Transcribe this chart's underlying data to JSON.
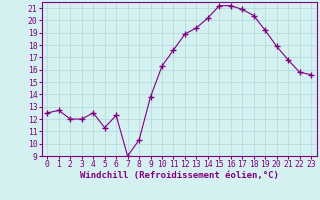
{
  "x": [
    0,
    1,
    2,
    3,
    4,
    5,
    6,
    7,
    8,
    9,
    10,
    11,
    12,
    13,
    14,
    15,
    16,
    17,
    18,
    19,
    20,
    21,
    22,
    23
  ],
  "y": [
    12.5,
    12.7,
    12.0,
    12.0,
    12.5,
    11.3,
    12.3,
    9.0,
    10.3,
    13.8,
    16.3,
    17.6,
    18.9,
    19.4,
    20.2,
    21.2,
    21.2,
    20.9,
    20.4,
    19.2,
    17.9,
    16.8,
    15.8,
    15.6
  ],
  "xlim": [
    -0.5,
    23.5
  ],
  "ylim": [
    9,
    21.5
  ],
  "yticks": [
    9,
    10,
    11,
    12,
    13,
    14,
    15,
    16,
    17,
    18,
    19,
    20,
    21
  ],
  "xticks": [
    0,
    1,
    2,
    3,
    4,
    5,
    6,
    7,
    8,
    9,
    10,
    11,
    12,
    13,
    14,
    15,
    16,
    17,
    18,
    19,
    20,
    21,
    22,
    23
  ],
  "xlabel": "Windchill (Refroidissement éolien,°C)",
  "line_color": "#800080",
  "marker": "+",
  "marker_size": 4,
  "bg_color": "#d4f0f0",
  "grid_color": "#b0d8d8",
  "label_fontsize": 6.5,
  "tick_fontsize": 5.8
}
